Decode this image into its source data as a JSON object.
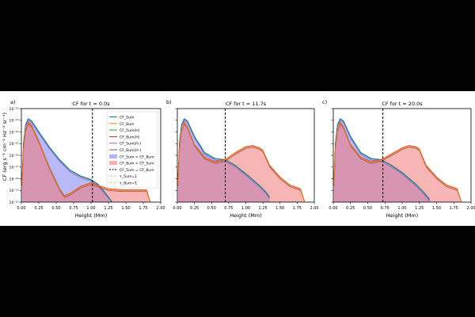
{
  "figure": {
    "ylabel": "CF (erg s$^{-1}$ cm$^{-1}$ Hz$^{-1}$ sr$^{-1}$)",
    "ylabel_display": "CF (erg s⁻¹ cm⁻¹ Hz⁻¹ sr⁻¹)",
    "xlabel": "Height (Mm)"
  },
  "colors": {
    "CF_5um": "#1f77b4",
    "CF_8um": "#ff7f0e",
    "CF_5um(H)": "#2ca02c",
    "CF_8um(H)": "#d62728",
    "CF_5um(H-)": "#9467bd",
    "CF_8um(H-)": "#8c564b",
    "fill_5um": "#8080f0",
    "fill_8um": "#f07878",
    "tau_5um": "#e377c2",
    "tau_8um": "#bcbd22"
  },
  "legend": {
    "placement": "right",
    "entries": [
      "CF_5um",
      "CF_8um",
      "CF_5um(H)",
      "CF_8um(H)",
      "CF_5um(H-)",
      "CF_8um(H-)",
      "CF_5um > CF_8um",
      "CF_8um > CF_5um",
      "CF_5um = CF_8um",
      "τ_5um=1",
      "τ_8um=1"
    ]
  },
  "chart_data": [
    {
      "type": "area",
      "panel_label": "a)",
      "title": "CF for t = 0.0s",
      "xlabel": "Height (Mm)",
      "xlim": [
        0,
        2
      ],
      "ylim": [
        1e-20,
        1e-12
      ],
      "log_y": true,
      "xticks": [
        "0.00",
        "0.25",
        "0.50",
        "0.75",
        "1.00",
        "1.25",
        "1.50",
        "1.75",
        "2.00"
      ],
      "yticks": [
        "10⁻²⁰",
        "10⁻¹⁹",
        "10⁻¹⁸",
        "10⁻¹⁷",
        "10⁻¹⁶",
        "10⁻¹⁵",
        "10⁻¹⁴",
        "10⁻¹³",
        "10⁻¹²"
      ],
      "crossing_x": 1.02,
      "series": [
        {
          "name": "CF_5um",
          "x": [
            0.01,
            0.03,
            0.06,
            0.1,
            0.15,
            0.25,
            0.4,
            0.55,
            0.7,
            0.85,
            1.0,
            1.1,
            1.2,
            1.3
          ],
          "y": [
            -18.0,
            -15.0,
            -13.4,
            -12.9,
            -13.1,
            -14.0,
            -15.3,
            -16.4,
            -17.3,
            -17.8,
            -18.1,
            -18.5,
            -19.2,
            -20.0
          ]
        },
        {
          "name": "CF_8um",
          "x": [
            0.01,
            0.03,
            0.06,
            0.1,
            0.15,
            0.25,
            0.4,
            0.55,
            0.62,
            0.7,
            0.85,
            1.0,
            1.1,
            1.25,
            1.45,
            1.65,
            1.8,
            1.85
          ],
          "y": [
            -18.5,
            -15.5,
            -13.9,
            -13.2,
            -13.5,
            -14.8,
            -17.0,
            -18.9,
            -19.5,
            -19.3,
            -18.7,
            -18.4,
            -18.6,
            -18.9,
            -19.0,
            -19.0,
            -19.0,
            -20.0
          ]
        }
      ]
    },
    {
      "type": "area",
      "panel_label": "b)",
      "title": "CF for t = 11.7s",
      "xlabel": "Height (Mm)",
      "xlim": [
        0,
        2
      ],
      "ylim": [
        1e-20,
        1e-12
      ],
      "log_y": true,
      "xticks": [
        "0.00",
        "0.25",
        "0.50",
        "0.75",
        "1.00",
        "1.25",
        "1.50",
        "1.75",
        "2.00"
      ],
      "crossing_x": 0.7,
      "series": [
        {
          "name": "CF_5um",
          "x": [
            0.01,
            0.03,
            0.06,
            0.1,
            0.15,
            0.25,
            0.4,
            0.55,
            0.7,
            0.85,
            1.0,
            1.1,
            1.2,
            1.3,
            1.35
          ],
          "y": [
            -18.0,
            -15.0,
            -13.4,
            -12.9,
            -13.1,
            -14.4,
            -15.8,
            -16.3,
            -16.4,
            -16.9,
            -17.6,
            -18.1,
            -18.6,
            -19.2,
            -19.6
          ]
        },
        {
          "name": "CF_8um",
          "x": [
            0.01,
            0.03,
            0.06,
            0.1,
            0.15,
            0.25,
            0.4,
            0.55,
            0.7,
            0.85,
            1.0,
            1.1,
            1.2,
            1.25,
            1.35,
            1.5,
            1.65,
            1.8,
            1.86
          ],
          "y": [
            -18.5,
            -15.5,
            -13.9,
            -13.2,
            -13.6,
            -15.1,
            -16.2,
            -16.6,
            -16.4,
            -15.8,
            -15.3,
            -15.2,
            -15.4,
            -15.6,
            -16.9,
            -17.9,
            -18.6,
            -18.9,
            -20.0
          ]
        }
      ]
    },
    {
      "type": "area",
      "panel_label": "c)",
      "title": "CF for t = 20.0s",
      "xlabel": "Height (Mm)",
      "xlim": [
        0,
        2
      ],
      "ylim": [
        1e-20,
        1e-12
      ],
      "log_y": true,
      "xticks": [
        "0.00",
        "0.25",
        "0.50",
        "0.75",
        "1.00",
        "1.25",
        "1.50",
        "1.75",
        "2.00"
      ],
      "crossing_x": 0.72,
      "series": [
        {
          "name": "CF_5um",
          "x": [
            0.01,
            0.03,
            0.06,
            0.1,
            0.15,
            0.25,
            0.4,
            0.55,
            0.7,
            0.85,
            1.0,
            1.1,
            1.2,
            1.3,
            1.4
          ],
          "y": [
            -18.0,
            -15.0,
            -13.4,
            -12.9,
            -13.1,
            -14.4,
            -15.8,
            -16.3,
            -16.4,
            -16.9,
            -17.5,
            -18.0,
            -18.5,
            -19.1,
            -19.8
          ]
        },
        {
          "name": "CF_8um",
          "x": [
            0.01,
            0.03,
            0.06,
            0.1,
            0.15,
            0.25,
            0.4,
            0.55,
            0.7,
            0.85,
            1.0,
            1.1,
            1.2,
            1.25,
            1.35,
            1.5,
            1.65,
            1.8,
            1.86
          ],
          "y": [
            -18.5,
            -15.5,
            -13.9,
            -13.2,
            -13.6,
            -15.1,
            -16.2,
            -16.6,
            -16.4,
            -15.9,
            -15.4,
            -15.2,
            -15.3,
            -15.5,
            -16.9,
            -17.9,
            -18.6,
            -18.9,
            -20.0
          ]
        }
      ]
    }
  ]
}
